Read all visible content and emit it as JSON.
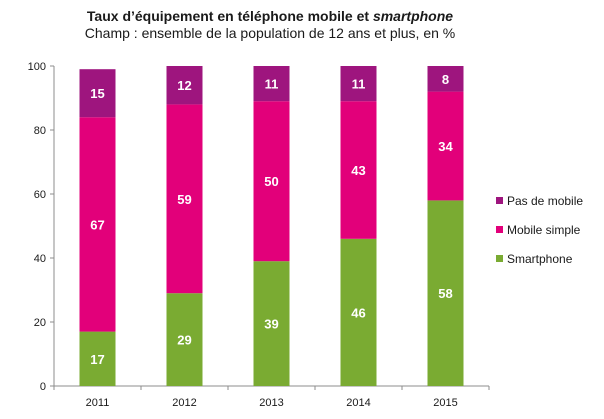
{
  "chart_data": {
    "type": "bar",
    "stacked": true,
    "title_main": "Taux d’équipement en téléphone mobile et ",
    "title_emph": "smartphone",
    "subtitle": "Champ : ensemble de la population de 12 ans et plus, en %",
    "categories": [
      "2011",
      "2012",
      "2013",
      "2014",
      "2015"
    ],
    "series": [
      {
        "name": "Smartphone",
        "color": "#7aab32",
        "values": [
          17,
          29,
          39,
          46,
          58
        ]
      },
      {
        "name": "Mobile simple",
        "color": "#e2007a",
        "values": [
          67,
          59,
          50,
          43,
          34
        ]
      },
      {
        "name": "Pas de mobile",
        "color": "#9e157e",
        "values": [
          15,
          12,
          11,
          11,
          8
        ]
      }
    ],
    "legend_order": [
      "Pas de mobile",
      "Mobile simple",
      "Smartphone"
    ],
    "ylim": [
      0,
      100
    ],
    "yticks": [
      0,
      20,
      40,
      60,
      80,
      100
    ],
    "grid": false,
    "legend_position": "right"
  }
}
